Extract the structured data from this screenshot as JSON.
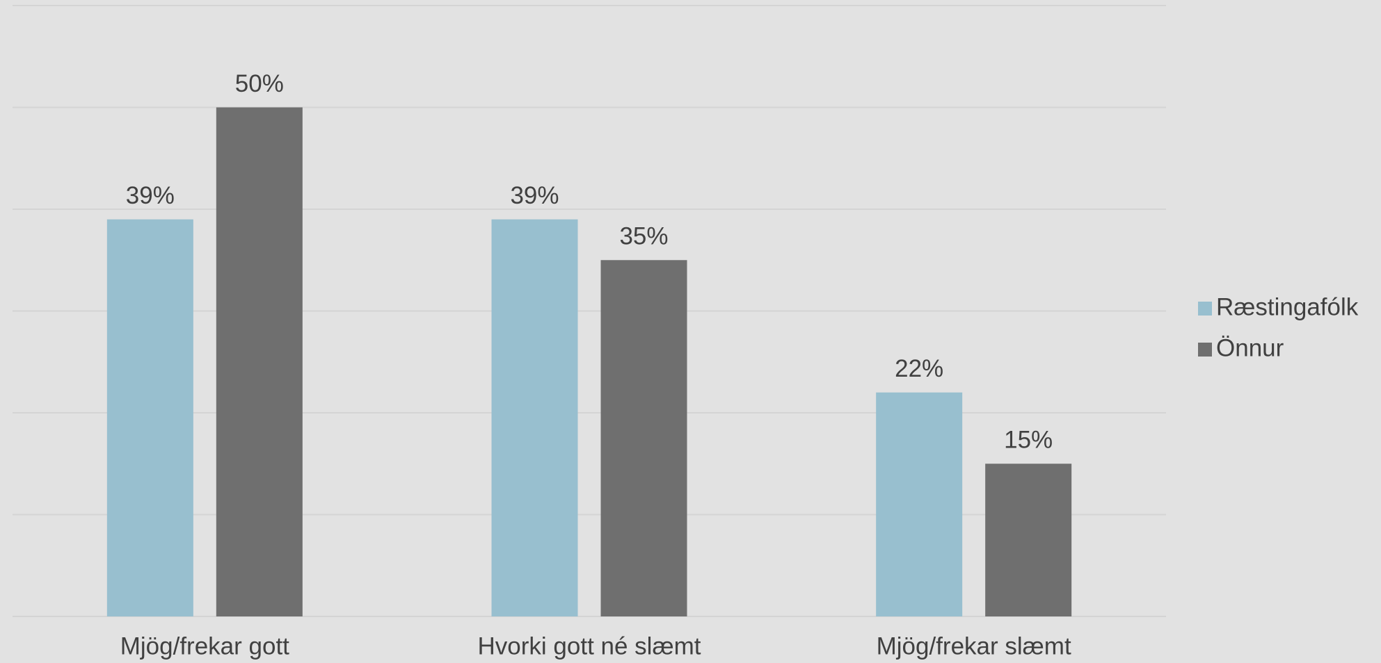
{
  "chart_data": {
    "type": "bar",
    "categories": [
      "Mjög/frekar gott",
      "Hvorki gott né slæmt",
      "Mjög/frekar slæmt"
    ],
    "series": [
      {
        "name": "Ræstingafólk",
        "color": "#98bfcf",
        "values": [
          39,
          39,
          22
        ],
        "value_labels": [
          "39%",
          "39%",
          "22%"
        ]
      },
      {
        "name": "Önnur",
        "color": "#6f6f6f",
        "values": [
          50,
          35,
          15
        ],
        "value_labels": [
          "50%",
          "35%",
          "15%"
        ]
      }
    ],
    "ylim": [
      0,
      60
    ],
    "yticks": [
      0,
      10,
      20,
      30,
      40,
      50,
      60
    ],
    "grid": true,
    "legend": "right"
  }
}
